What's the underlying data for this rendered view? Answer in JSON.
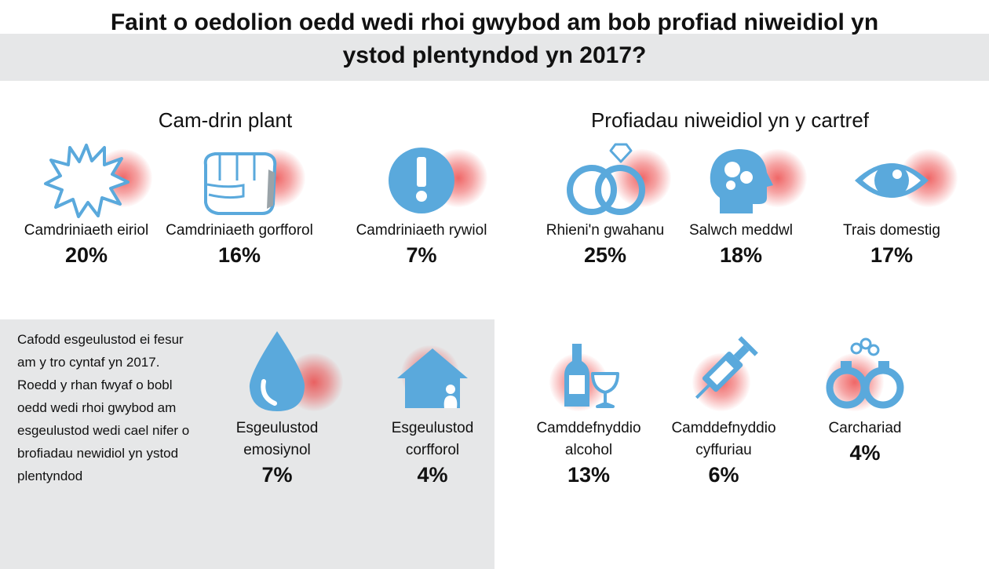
{
  "title": {
    "line1": "Faint o oedolion oedd wedi rhoi gwybod am bob profiad niweidiol yn",
    "line2": "ystod plentyndod yn 2017?"
  },
  "colors": {
    "icon": "#5aa9dc",
    "halo": "#e83a3a",
    "panel": "#e6e7e8"
  },
  "sections": {
    "abuse": {
      "heading": "Cam-drin plant"
    },
    "home": {
      "heading": "Profiadau niweidiol yn y cartref"
    }
  },
  "panel": {
    "text": "Cafodd esgeulustod ei fesur am y tro cyntaf yn 2017. Roedd y rhan fwyaf o bobl oedd wedi rhoi gwybod am esgeulustod wedi cael nifer o brofiadau newidiol yn ystod plentyndod"
  },
  "items": {
    "verbal": {
      "label": "Camdriniaeth eiriol",
      "value": "20%",
      "icon": "speech-burst-icon"
    },
    "physical": {
      "label": "Camdriniaeth gorfforol",
      "value": "16%",
      "icon": "fist-icon"
    },
    "sexual": {
      "label": "Camdriniaeth rywiol",
      "value": "7%",
      "icon": "exclamation-icon"
    },
    "separation": {
      "label": "Rhieni'n gwahanu",
      "value": "25%",
      "icon": "rings-icon"
    },
    "mental": {
      "label": "Salwch meddwl",
      "value": "18%",
      "icon": "head-puzzle-icon"
    },
    "domestic": {
      "label": "Trais domestig",
      "value": "17%",
      "icon": "eye-icon"
    },
    "emotional_neglect": {
      "label1": "Esgeulustod",
      "label2": "emosiynol",
      "value": "7%",
      "icon": "droplet-icon"
    },
    "physical_neglect": {
      "label1": "Esgeulustod",
      "label2": "corfforol",
      "value": "4%",
      "icon": "house-icon"
    },
    "alcohol": {
      "label1": "Camddefnyddio",
      "label2": "alcohol",
      "value": "13%",
      "icon": "bottle-glass-icon"
    },
    "drugs": {
      "label1": "Camddefnyddio",
      "label2": "cyffuriau",
      "value": "6%",
      "icon": "syringe-icon"
    },
    "prison": {
      "label": "Carchariad",
      "value": "4%",
      "icon": "handcuffs-icon"
    }
  }
}
